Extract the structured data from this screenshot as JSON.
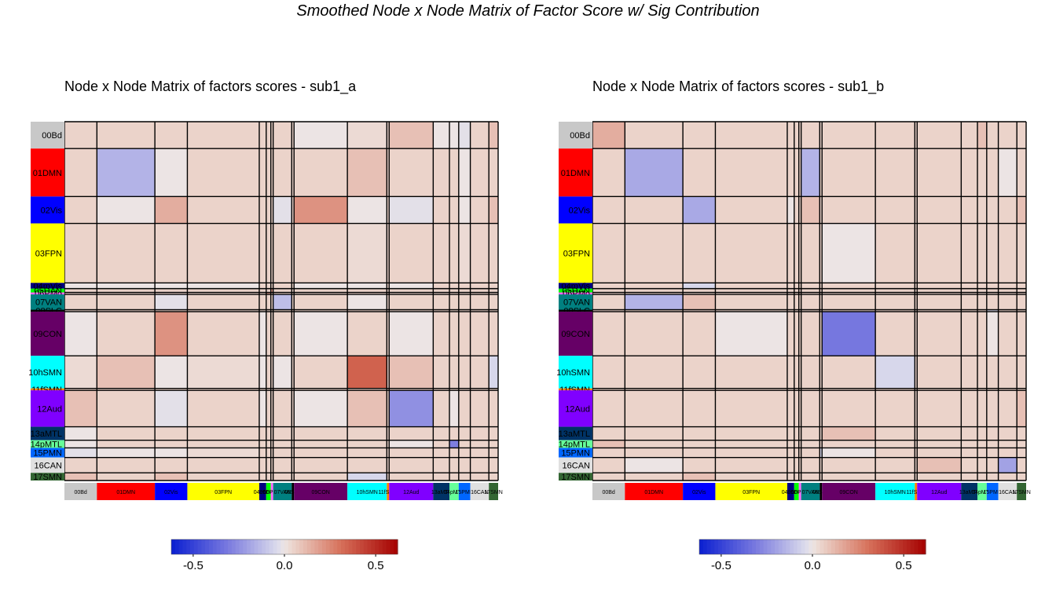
{
  "suptitle": "Smoothed Node x Node Matrix of Factor Score w/ Sig Contribution",
  "chart_data": [
    {
      "type": "heatmap",
      "title": "Node x Node Matrix of factors scores - sub1_a",
      "colorbar": {
        "min": -0.62,
        "max": 0.62,
        "ticks": [
          -0.5,
          0.0,
          0.5
        ],
        "tick_labels": [
          "-0.5",
          "0.0",
          "0.5"
        ],
        "colormap": "blue-white-red"
      },
      "networks": [
        {
          "label": "00Bd",
          "size": 14,
          "color": "#c8c8c8"
        },
        {
          "label": "01DMN",
          "size": 25,
          "color": "#ff0000"
        },
        {
          "label": "02Vis",
          "size": 14,
          "color": "#0000ff"
        },
        {
          "label": "03FPN",
          "size": 31,
          "color": "#ffff00"
        },
        {
          "label": "04mVis",
          "size": 3,
          "color": "#000080"
        },
        {
          "label": "05DAN",
          "size": 2,
          "color": "#00ff00"
        },
        {
          "label": "06PMo",
          "size": 1,
          "color": "#ff66ff"
        },
        {
          "label": "07VAN",
          "size": 8,
          "color": "#008080"
        },
        {
          "label": "08SLC",
          "size": 1,
          "color": "#000000"
        },
        {
          "label": "09CON",
          "size": 23,
          "color": "#660066"
        },
        {
          "label": "10hSMN",
          "size": 17,
          "color": "#00ffff"
        },
        {
          "label": "11fSMN",
          "size": 1,
          "color": "#ff8000"
        },
        {
          "label": "12Aud",
          "size": 19,
          "color": "#8000ff"
        },
        {
          "label": "13aMTL",
          "size": 7,
          "color": "#003366"
        },
        {
          "label": "14pMTL",
          "size": 4,
          "color": "#66ff99"
        },
        {
          "label": "15PMN",
          "size": 5,
          "color": "#0066ff"
        },
        {
          "label": "16CAN",
          "size": 8,
          "color": "#e0e0e0"
        },
        {
          "label": "17SMN",
          "size": 4,
          "color": "#336633"
        }
      ],
      "values": [
        [
          0.05,
          0.05,
          0.05,
          0.05,
          0.05,
          0.05,
          0.05,
          0.05,
          0.05,
          0.0,
          0.03,
          0.05,
          0.1,
          0.0,
          0.0,
          -0.02,
          0.05,
          0.1
        ],
        [
          0.05,
          -0.15,
          0.0,
          0.05,
          0.05,
          0.05,
          0.05,
          0.05,
          0.05,
          0.05,
          0.1,
          0.05,
          0.05,
          0.05,
          0.05,
          0.0,
          0.05,
          0.05
        ],
        [
          0.05,
          0.0,
          0.15,
          0.05,
          0.05,
          0.05,
          0.05,
          -0.02,
          0.05,
          0.22,
          0.0,
          0.05,
          -0.02,
          0.05,
          0.05,
          0.0,
          0.05,
          0.1
        ],
        [
          0.05,
          0.05,
          0.05,
          0.05,
          0.05,
          0.05,
          0.05,
          0.05,
          0.05,
          0.05,
          0.03,
          0.05,
          0.05,
          0.05,
          0.05,
          0.03,
          0.05,
          0.05
        ],
        [
          0.0,
          0.0,
          0.0,
          0.0,
          0.05,
          0.05,
          0.05,
          0.05,
          0.05,
          0.0,
          0.0,
          0.05,
          0.0,
          0.05,
          0.05,
          0.05,
          0.05,
          0.05
        ],
        [
          0.05,
          0.05,
          0.05,
          0.05,
          0.05,
          0.05,
          0.2,
          0.05,
          0.05,
          0.05,
          0.05,
          0.05,
          0.05,
          0.05,
          0.05,
          0.05,
          0.05,
          0.05
        ],
        [
          0.05,
          0.05,
          0.05,
          0.05,
          0.05,
          0.2,
          0.05,
          0.05,
          0.05,
          0.05,
          0.05,
          0.05,
          0.05,
          0.05,
          0.05,
          0.05,
          0.05,
          0.05
        ],
        [
          0.05,
          0.05,
          -0.02,
          0.05,
          0.05,
          0.05,
          0.05,
          -0.12,
          0.05,
          0.05,
          0.0,
          0.05,
          0.05,
          0.05,
          0.05,
          0.05,
          0.05,
          0.05
        ],
        [
          0.05,
          0.05,
          0.05,
          0.05,
          0.05,
          0.05,
          0.05,
          0.05,
          0.05,
          0.05,
          0.05,
          0.05,
          0.05,
          0.05,
          0.05,
          0.05,
          0.05,
          0.05
        ],
        [
          0.0,
          0.05,
          0.22,
          0.05,
          0.0,
          0.05,
          0.05,
          0.05,
          0.05,
          0.0,
          0.05,
          0.05,
          0.0,
          0.05,
          0.05,
          0.05,
          0.05,
          0.05
        ],
        [
          0.03,
          0.1,
          0.0,
          0.03,
          0.0,
          0.05,
          0.05,
          0.0,
          0.05,
          0.05,
          0.35,
          0.05,
          0.1,
          0.05,
          0.05,
          0.05,
          0.05,
          -0.05
        ],
        [
          0.05,
          0.05,
          0.05,
          0.05,
          0.05,
          0.05,
          0.05,
          0.05,
          0.05,
          0.05,
          0.05,
          0.05,
          0.05,
          0.05,
          0.05,
          0.05,
          0.05,
          0.05
        ],
        [
          0.1,
          0.05,
          -0.02,
          0.05,
          0.0,
          0.05,
          0.05,
          0.05,
          0.05,
          0.0,
          0.1,
          0.05,
          -0.25,
          0.05,
          0.0,
          0.05,
          0.05,
          0.05
        ],
        [
          0.0,
          0.05,
          0.05,
          0.05,
          0.05,
          0.05,
          0.05,
          0.05,
          0.05,
          0.05,
          0.05,
          0.05,
          0.05,
          0.05,
          0.05,
          0.05,
          0.05,
          0.05
        ],
        [
          0.0,
          0.05,
          0.05,
          0.05,
          0.05,
          0.05,
          0.05,
          0.05,
          0.05,
          0.05,
          0.05,
          0.05,
          0.0,
          0.05,
          -0.3,
          0.05,
          0.05,
          0.05
        ],
        [
          -0.02,
          0.0,
          0.0,
          0.03,
          0.05,
          0.05,
          0.05,
          0.05,
          0.05,
          0.05,
          0.05,
          0.05,
          0.05,
          0.05,
          0.05,
          0.05,
          0.05,
          0.05
        ],
        [
          0.05,
          0.05,
          0.05,
          0.05,
          0.05,
          0.05,
          0.05,
          0.05,
          0.05,
          0.05,
          0.05,
          0.05,
          0.05,
          0.05,
          0.05,
          0.05,
          0.05,
          0.05
        ],
        [
          0.1,
          0.05,
          0.1,
          0.05,
          0.05,
          0.05,
          0.05,
          0.05,
          0.05,
          0.05,
          -0.05,
          0.05,
          0.05,
          0.05,
          0.05,
          0.05,
          0.05,
          0.05
        ]
      ]
    },
    {
      "type": "heatmap",
      "title": "Node x Node Matrix of factors scores - sub1_b",
      "colorbar": {
        "min": -0.62,
        "max": 0.62,
        "ticks": [
          -0.5,
          0.0,
          0.5
        ],
        "tick_labels": [
          "-0.5",
          "0.0",
          "0.5"
        ],
        "colormap": "blue-white-red"
      },
      "networks": [
        {
          "label": "00Bd",
          "size": 14,
          "color": "#c8c8c8"
        },
        {
          "label": "01DMN",
          "size": 25,
          "color": "#ff0000"
        },
        {
          "label": "02Vis",
          "size": 14,
          "color": "#0000ff"
        },
        {
          "label": "03FPN",
          "size": 31,
          "color": "#ffff00"
        },
        {
          "label": "04mVis",
          "size": 3,
          "color": "#000080"
        },
        {
          "label": "05DAN",
          "size": 2,
          "color": "#00ff00"
        },
        {
          "label": "06PMo",
          "size": 1,
          "color": "#ff66ff"
        },
        {
          "label": "07VAN",
          "size": 8,
          "color": "#008080"
        },
        {
          "label": "08SLC",
          "size": 1,
          "color": "#000000"
        },
        {
          "label": "09CON",
          "size": 23,
          "color": "#660066"
        },
        {
          "label": "10hSMN",
          "size": 17,
          "color": "#00ffff"
        },
        {
          "label": "11fSMN",
          "size": 1,
          "color": "#ff8000"
        },
        {
          "label": "12Aud",
          "size": 19,
          "color": "#8000ff"
        },
        {
          "label": "13aMTL",
          "size": 7,
          "color": "#003366"
        },
        {
          "label": "14pMTL",
          "size": 4,
          "color": "#66ff99"
        },
        {
          "label": "15PMN",
          "size": 5,
          "color": "#0066ff"
        },
        {
          "label": "16CAN",
          "size": 8,
          "color": "#e0e0e0"
        },
        {
          "label": "17SMN",
          "size": 4,
          "color": "#336633"
        }
      ],
      "values": [
        [
          0.15,
          0.05,
          0.05,
          0.05,
          0.05,
          0.05,
          0.05,
          0.05,
          0.05,
          0.05,
          0.05,
          0.05,
          0.05,
          0.05,
          0.1,
          0.05,
          0.05,
          0.05
        ],
        [
          0.05,
          -0.18,
          0.05,
          0.05,
          0.05,
          0.05,
          0.05,
          -0.15,
          0.05,
          0.05,
          0.05,
          0.05,
          0.05,
          0.05,
          0.05,
          0.05,
          0.0,
          0.05
        ],
        [
          0.05,
          0.05,
          -0.18,
          0.05,
          0.0,
          0.05,
          0.05,
          0.1,
          0.05,
          0.05,
          0.05,
          0.05,
          0.05,
          0.05,
          0.05,
          0.05,
          0.05,
          0.1
        ],
        [
          0.05,
          0.05,
          0.05,
          0.05,
          0.05,
          0.05,
          0.05,
          0.05,
          0.05,
          0.0,
          0.05,
          0.05,
          0.05,
          0.05,
          0.05,
          0.05,
          0.05,
          0.05
        ],
        [
          0.05,
          0.05,
          -0.05,
          0.05,
          0.05,
          0.05,
          0.05,
          0.05,
          0.05,
          0.05,
          0.05,
          0.05,
          0.05,
          0.05,
          0.05,
          0.05,
          0.05,
          0.05
        ],
        [
          0.05,
          0.05,
          0.05,
          0.05,
          0.05,
          0.05,
          0.05,
          0.05,
          0.05,
          0.05,
          0.05,
          0.05,
          0.05,
          0.05,
          0.05,
          0.05,
          0.05,
          0.05
        ],
        [
          0.05,
          0.05,
          0.05,
          0.05,
          0.05,
          0.05,
          0.05,
          0.05,
          0.05,
          0.05,
          0.05,
          0.05,
          0.05,
          0.05,
          0.05,
          0.05,
          0.05,
          0.05
        ],
        [
          0.05,
          -0.15,
          0.1,
          0.05,
          0.05,
          0.05,
          0.05,
          0.05,
          0.05,
          0.05,
          0.05,
          0.05,
          0.05,
          0.05,
          0.05,
          0.05,
          0.05,
          0.05
        ],
        [
          0.05,
          0.05,
          0.05,
          0.05,
          0.05,
          0.05,
          0.05,
          0.05,
          0.05,
          0.05,
          0.05,
          0.05,
          0.05,
          0.05,
          0.05,
          -0.05,
          0.05,
          0.05
        ],
        [
          0.05,
          0.05,
          0.05,
          0.0,
          0.05,
          0.05,
          0.05,
          0.05,
          0.05,
          -0.32,
          0.05,
          0.05,
          0.05,
          0.05,
          0.05,
          0.0,
          0.05,
          0.05
        ],
        [
          0.05,
          0.05,
          0.05,
          0.05,
          0.05,
          0.05,
          0.05,
          0.05,
          0.05,
          0.05,
          -0.05,
          0.05,
          0.05,
          0.05,
          0.05,
          0.05,
          0.05,
          0.05
        ],
        [
          0.05,
          0.05,
          0.05,
          0.05,
          0.05,
          0.05,
          0.05,
          0.05,
          0.05,
          0.05,
          0.05,
          0.05,
          0.05,
          0.05,
          0.05,
          0.05,
          0.05,
          0.05
        ],
        [
          0.05,
          0.05,
          0.05,
          0.05,
          0.05,
          0.05,
          0.05,
          0.05,
          0.05,
          0.05,
          0.05,
          0.05,
          0.05,
          0.05,
          0.05,
          0.05,
          0.05,
          0.1
        ],
        [
          0.05,
          0.05,
          0.05,
          0.05,
          0.05,
          0.05,
          0.05,
          0.05,
          0.05,
          0.1,
          0.05,
          0.05,
          0.05,
          0.05,
          0.05,
          0.05,
          0.05,
          0.05
        ],
        [
          0.1,
          0.05,
          0.05,
          0.05,
          0.05,
          0.05,
          0.05,
          0.05,
          0.05,
          0.05,
          0.05,
          0.05,
          0.05,
          0.05,
          0.05,
          0.05,
          0.05,
          0.05
        ],
        [
          0.05,
          0.05,
          0.05,
          0.05,
          0.05,
          0.05,
          0.05,
          0.05,
          -0.05,
          0.0,
          0.05,
          0.05,
          0.05,
          0.05,
          0.05,
          0.05,
          0.05,
          0.05
        ],
        [
          0.05,
          0.0,
          0.05,
          0.05,
          0.05,
          0.05,
          0.05,
          0.05,
          0.05,
          0.05,
          0.05,
          0.05,
          0.1,
          0.05,
          0.05,
          0.05,
          -0.2,
          0.05
        ],
        [
          0.05,
          0.05,
          0.1,
          0.05,
          0.05,
          0.05,
          0.05,
          0.05,
          0.05,
          0.05,
          0.05,
          0.05,
          0.05,
          0.05,
          0.05,
          0.05,
          0.05,
          0.05
        ]
      ]
    }
  ]
}
